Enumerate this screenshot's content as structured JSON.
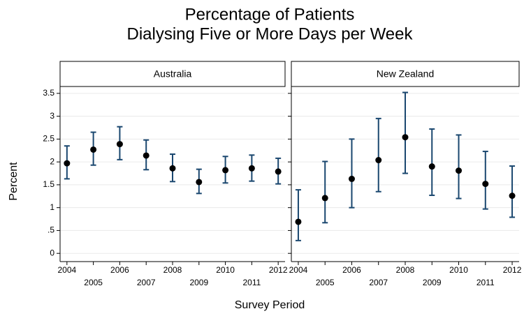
{
  "chart_data": {
    "type": "errorbar",
    "title": [
      "Percentage of Patients",
      "Dialysing Five or More Days per Week"
    ],
    "xlabel": "Survey Period",
    "ylabel": "Percent",
    "x": [
      2004,
      2005,
      2006,
      2007,
      2008,
      2009,
      2010,
      2011,
      2012
    ],
    "xlim": [
      2003.74,
      2012.26
    ],
    "xticks": [
      2004,
      2005,
      2006,
      2007,
      2008,
      2009,
      2010,
      2011,
      2012
    ],
    "ylim": [
      -0.18,
      3.65
    ],
    "yticks": [
      0,
      {
        "value": 0.5,
        "label": ".5"
      },
      1,
      1.5,
      2,
      2.5,
      3,
      3.5
    ],
    "grid": true,
    "bar_color": "#1a476f",
    "point_color": "#000000",
    "panels": [
      {
        "name": "Australia",
        "values": [
          1.97,
          2.27,
          2.39,
          2.14,
          1.86,
          1.56,
          1.82,
          1.86,
          1.79
        ],
        "lower": [
          1.63,
          1.93,
          2.05,
          1.83,
          1.57,
          1.31,
          1.54,
          1.58,
          1.52
        ],
        "upper": [
          2.35,
          2.65,
          2.77,
          2.48,
          2.17,
          1.84,
          2.12,
          2.15,
          2.08
        ]
      },
      {
        "name": "New Zealand",
        "values": [
          0.69,
          1.21,
          1.63,
          2.04,
          2.54,
          1.9,
          1.81,
          1.52,
          1.26
        ],
        "lower": [
          0.28,
          0.67,
          1.0,
          1.35,
          1.75,
          1.27,
          1.2,
          0.97,
          0.79
        ],
        "upper": [
          1.39,
          2.01,
          2.5,
          2.95,
          3.52,
          2.72,
          2.59,
          2.23,
          1.91
        ]
      }
    ]
  }
}
